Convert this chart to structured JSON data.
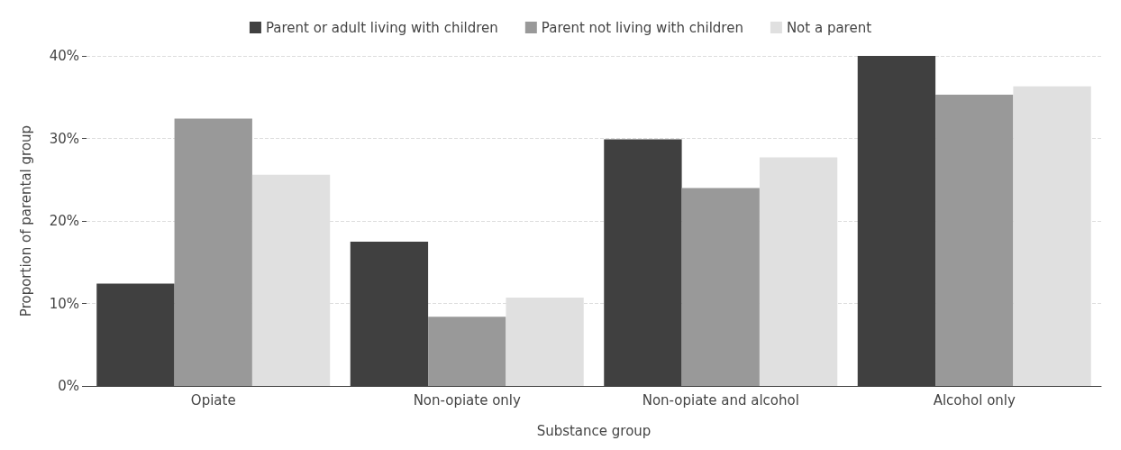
{
  "chart_data": {
    "type": "bar",
    "xlabel": "Substance group",
    "ylabel": "Proportion of parental group",
    "categories": [
      "Opiate",
      "Non-opiate only",
      "Non-opiate and alcohol",
      "Alcohol only"
    ],
    "series": [
      {
        "name": "Parent or adult living with children",
        "color": "#404040",
        "values": [
          12.4,
          17.5,
          29.9,
          40.0
        ]
      },
      {
        "name": "Parent not living with children",
        "color": "#999999",
        "values": [
          32.4,
          8.4,
          24.0,
          35.3
        ]
      },
      {
        "name": "Not a parent",
        "color": "#e0e0e0",
        "values": [
          25.6,
          10.7,
          27.7,
          36.3
        ]
      }
    ],
    "ylim": [
      0,
      40
    ],
    "yticks": [
      {
        "value": 0,
        "label": "0%"
      },
      {
        "value": 10,
        "label": "10%"
      },
      {
        "value": 20,
        "label": "20%"
      },
      {
        "value": 30,
        "label": "30%"
      },
      {
        "value": 40,
        "label": "40%"
      }
    ],
    "grid": "y",
    "legend": "top"
  }
}
